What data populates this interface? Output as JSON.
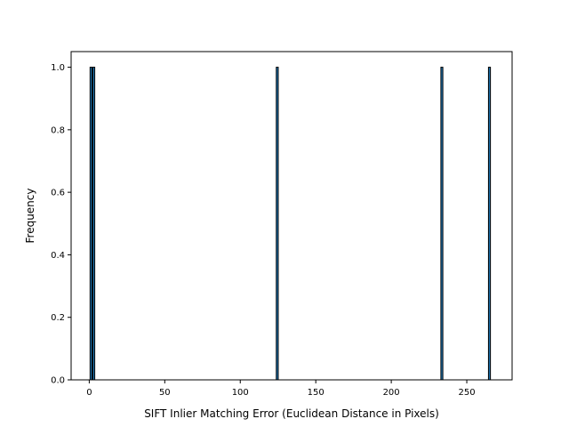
{
  "chart_data": {
    "type": "bar",
    "title": "",
    "xlabel": "SIFT Inlier Matching Error (Euclidean Distance in Pixels)",
    "ylabel": "Frequency",
    "xlim": [
      -12,
      280
    ],
    "ylim": [
      0,
      1.05
    ],
    "x_ticks": [
      0,
      50,
      100,
      150,
      200,
      250
    ],
    "x_tick_labels": [
      "0",
      "50",
      "100",
      "150",
      "200",
      "250"
    ],
    "y_ticks": [
      0.0,
      0.2,
      0.4,
      0.6,
      0.8,
      1.0
    ],
    "y_tick_labels": [
      "0.0",
      "0.2",
      "0.4",
      "0.6",
      "0.8",
      "1.0"
    ],
    "grid": false,
    "bars": [
      {
        "x": 1.2,
        "value": 1
      },
      {
        "x": 3.0,
        "value": 1
      },
      {
        "x": 124.5,
        "value": 1
      },
      {
        "x": 233.5,
        "value": 1
      },
      {
        "x": 265.0,
        "value": 1
      }
    ],
    "colors": {
      "bar_fill": "#1f77b4",
      "bar_edge": "#000000",
      "axis": "#000000"
    }
  }
}
